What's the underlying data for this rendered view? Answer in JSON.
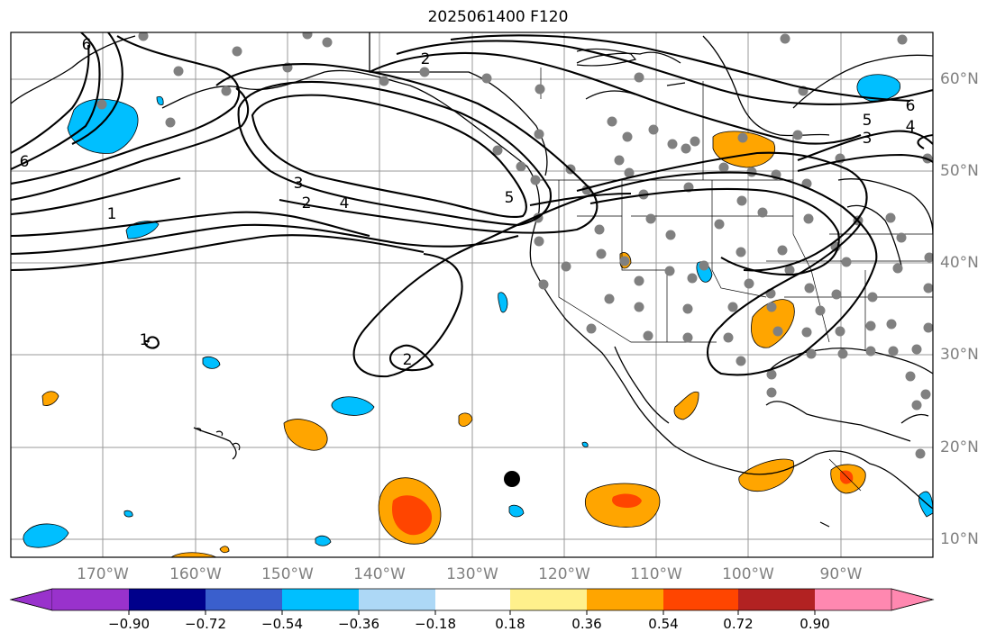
{
  "title": "2025061400 F120",
  "map": {
    "projection": "PlateCarree",
    "lon_range": [
      -180,
      -80
    ],
    "lat_range": [
      8,
      65
    ],
    "gridlines": true,
    "lon_labels": [
      "170°W",
      "160°W",
      "150°W",
      "140°W",
      "130°W",
      "120°W",
      "110°W",
      "100°W",
      "90°W"
    ],
    "lat_labels": [
      "60°N",
      "50°N",
      "40°N",
      "30°N",
      "20°N",
      "10°N"
    ],
    "contour_labels": [
      "2",
      "6",
      "5",
      "4",
      "3",
      "6",
      "1",
      "3",
      "2",
      "4",
      "5",
      "6",
      "1",
      "2"
    ],
    "marker": {
      "name": "center-point",
      "lon": -125.5,
      "lat": 16.5
    },
    "colors": {
      "positive_light": "#ffa500",
      "positive_strong": "#ff4500",
      "negative": "#00bfff",
      "station_dots": "#808080"
    }
  },
  "colorbar": {
    "extend": "both",
    "tick_labels": [
      "−0.90",
      "−0.72",
      "−0.54",
      "−0.36",
      "−0.18",
      "0.18",
      "0.36",
      "0.54",
      "0.72",
      "0.90"
    ],
    "colors": [
      "#9932cc",
      "#00008b",
      "#3a5fcd",
      "#00bfff",
      "#add8f6",
      "#ffffff",
      "#fff08c",
      "#ffa500",
      "#ff4500",
      "#b22222",
      "#ff88b0"
    ]
  }
}
